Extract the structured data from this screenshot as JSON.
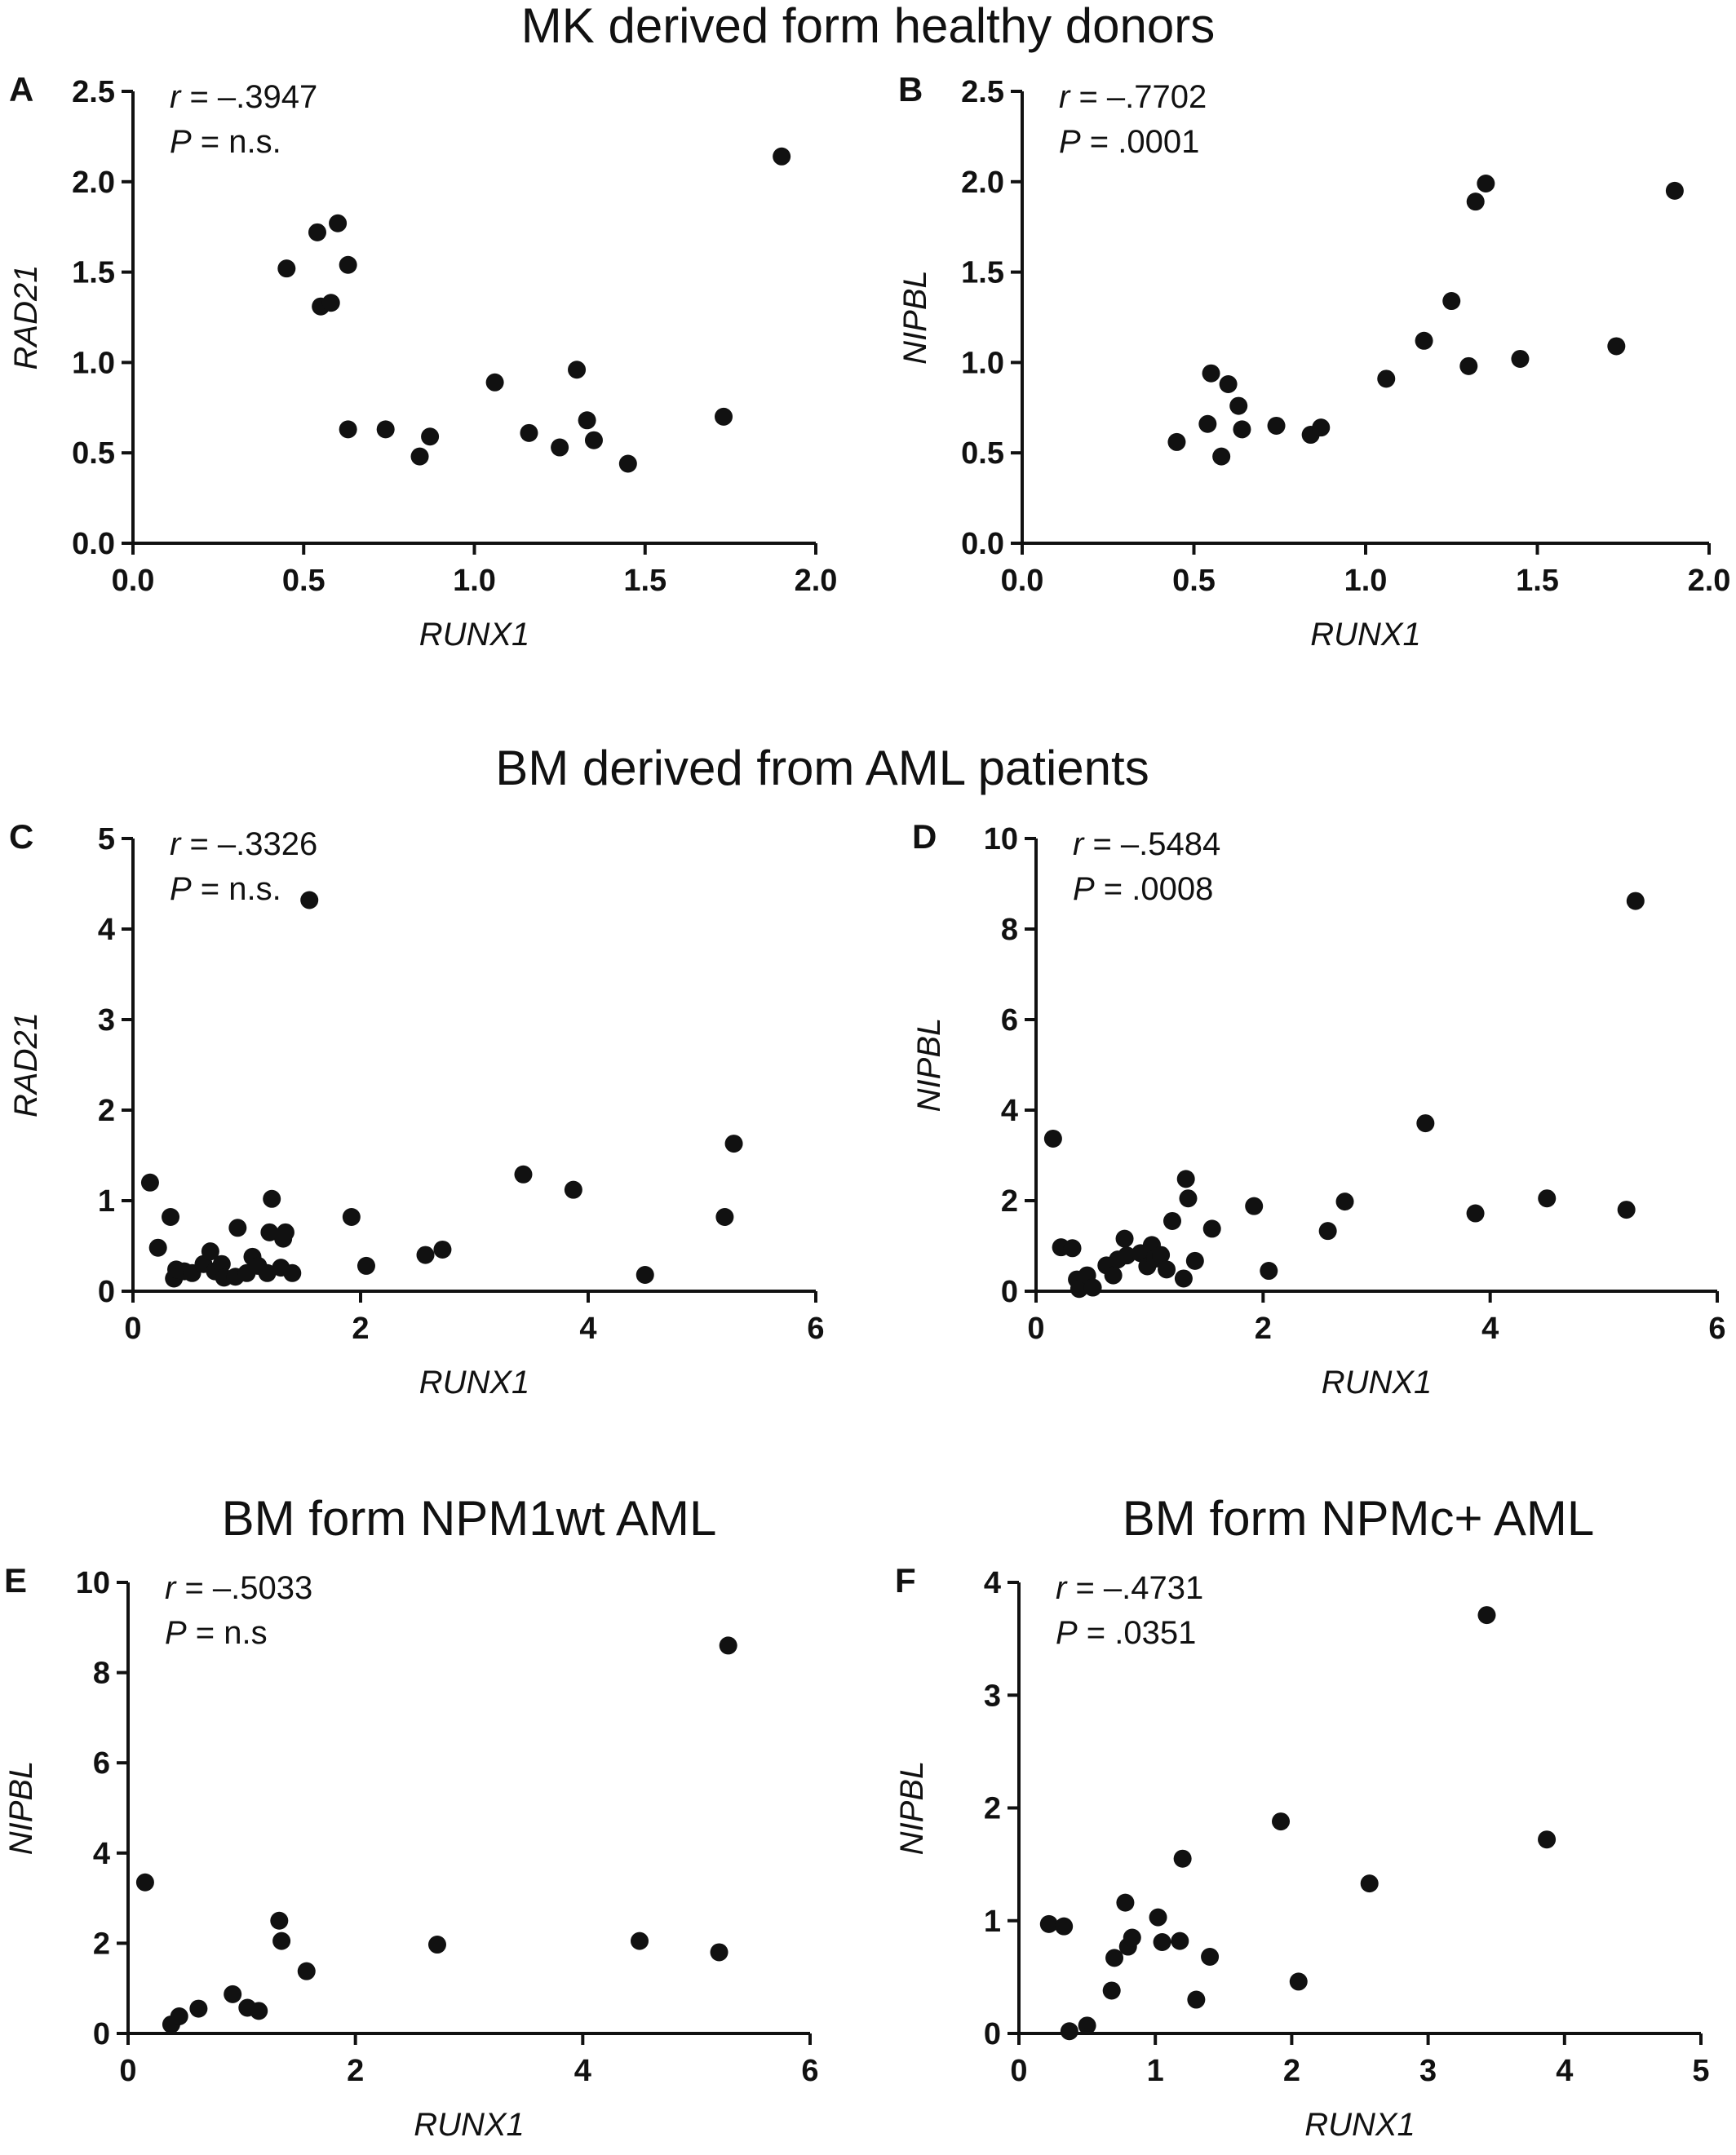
{
  "section_titles": [
    "MK derived form healthy donors",
    "BM derived from AML patients",
    "BM form NPM1wt AML",
    "BM form NPMc+ AML"
  ],
  "chart_data": [
    {
      "panel": "A",
      "type": "scatter",
      "xlabel": "RUNX1",
      "ylabel": "RAD21",
      "xlim": [
        0,
        2.0
      ],
      "ylim": [
        0,
        2.5
      ],
      "xticks": [
        "0.0",
        "0.5",
        "1.0",
        "1.5",
        "2.0"
      ],
      "yticks": [
        "0.0",
        "0.5",
        "1.0",
        "1.5",
        "2.0",
        "2.5"
      ],
      "stats": {
        "r_label": "r",
        "r_value": " = –.3947",
        "p_label": "P",
        "p_value": " = n.s."
      },
      "points": [
        [
          0.45,
          1.52
        ],
        [
          0.54,
          1.72
        ],
        [
          0.55,
          1.31
        ],
        [
          0.58,
          1.33
        ],
        [
          0.6,
          1.77
        ],
        [
          0.63,
          1.54
        ],
        [
          0.63,
          0.63
        ],
        [
          0.74,
          0.63
        ],
        [
          0.84,
          0.48
        ],
        [
          0.87,
          0.59
        ],
        [
          1.06,
          0.89
        ],
        [
          1.16,
          0.61
        ],
        [
          1.25,
          0.53
        ],
        [
          1.3,
          0.96
        ],
        [
          1.33,
          0.68
        ],
        [
          1.35,
          0.57
        ],
        [
          1.45,
          0.44
        ],
        [
          1.73,
          0.7
        ],
        [
          1.9,
          2.14
        ]
      ]
    },
    {
      "panel": "B",
      "type": "scatter",
      "xlabel": "RUNX1",
      "ylabel": "NIPBL",
      "xlim": [
        0,
        2.0
      ],
      "ylim": [
        0,
        2.5
      ],
      "xticks": [
        "0.0",
        "0.5",
        "1.0",
        "1.5",
        "2.0"
      ],
      "yticks": [
        "0.0",
        "0.5",
        "1.0",
        "1.5",
        "2.0",
        "2.5"
      ],
      "stats": {
        "r_label": "r",
        "r_value": " = –.7702",
        "p_label": "P",
        "p_value": " = .0001"
      },
      "points": [
        [
          0.45,
          0.56
        ],
        [
          0.54,
          0.66
        ],
        [
          0.55,
          0.94
        ],
        [
          0.58,
          0.48
        ],
        [
          0.6,
          0.88
        ],
        [
          0.63,
          0.76
        ],
        [
          0.64,
          0.63
        ],
        [
          0.74,
          0.65
        ],
        [
          0.84,
          0.6
        ],
        [
          0.87,
          0.64
        ],
        [
          1.06,
          0.91
        ],
        [
          1.17,
          1.12
        ],
        [
          1.25,
          1.34
        ],
        [
          1.3,
          0.98
        ],
        [
          1.32,
          1.89
        ],
        [
          1.35,
          1.99
        ],
        [
          1.45,
          1.02
        ],
        [
          1.73,
          1.09
        ],
        [
          1.9,
          1.95
        ]
      ]
    },
    {
      "panel": "C",
      "type": "scatter",
      "xlabel": "RUNX1",
      "ylabel": "RAD21",
      "xlim": [
        0,
        6
      ],
      "ylim": [
        0,
        5
      ],
      "xticks": [
        "0",
        "2",
        "4",
        "6"
      ],
      "yticks": [
        "0",
        "1",
        "2",
        "3",
        "4",
        "5"
      ],
      "stats": {
        "r_label": "r",
        "r_value": " = –.3326",
        "p_label": "P",
        "p_value": " = n.s."
      },
      "points": [
        [
          0.15,
          1.2
        ],
        [
          0.22,
          0.48
        ],
        [
          0.33,
          0.82
        ],
        [
          0.36,
          0.14
        ],
        [
          0.38,
          0.24
        ],
        [
          0.45,
          0.22
        ],
        [
          0.52,
          0.2
        ],
        [
          0.62,
          0.3
        ],
        [
          0.68,
          0.44
        ],
        [
          0.72,
          0.22
        ],
        [
          0.78,
          0.3
        ],
        [
          0.8,
          0.15
        ],
        [
          0.9,
          0.16
        ],
        [
          0.92,
          0.7
        ],
        [
          1.0,
          0.2
        ],
        [
          1.05,
          0.38
        ],
        [
          1.1,
          0.28
        ],
        [
          1.18,
          0.2
        ],
        [
          1.2,
          0.65
        ],
        [
          1.22,
          1.02
        ],
        [
          1.3,
          0.26
        ],
        [
          1.32,
          0.58
        ],
        [
          1.34,
          0.65
        ],
        [
          1.4,
          0.2
        ],
        [
          1.55,
          4.32
        ],
        [
          1.92,
          0.82
        ],
        [
          2.05,
          0.28
        ],
        [
          2.57,
          0.4
        ],
        [
          2.72,
          0.46
        ],
        [
          3.43,
          1.29
        ],
        [
          3.87,
          1.12
        ],
        [
          4.5,
          0.18
        ],
        [
          5.2,
          0.82
        ],
        [
          5.28,
          1.63
        ]
      ]
    },
    {
      "panel": "D",
      "type": "scatter",
      "xlabel": "RUNX1",
      "ylabel": "NIPBL",
      "xlim": [
        0,
        6
      ],
      "ylim": [
        0,
        10
      ],
      "xticks": [
        "0",
        "2",
        "4",
        "6"
      ],
      "yticks": [
        "0",
        "2",
        "4",
        "6",
        "8",
        "10"
      ],
      "stats": {
        "r_label": "r",
        "r_value": " = –.5484",
        "p_label": "P",
        "p_value": " =  .0008"
      },
      "points": [
        [
          0.15,
          3.37
        ],
        [
          0.22,
          0.97
        ],
        [
          0.32,
          0.95
        ],
        [
          0.36,
          0.26
        ],
        [
          0.38,
          0.05
        ],
        [
          0.45,
          0.35
        ],
        [
          0.5,
          0.08
        ],
        [
          0.62,
          0.57
        ],
        [
          0.68,
          0.35
        ],
        [
          0.72,
          0.7
        ],
        [
          0.78,
          1.16
        ],
        [
          0.8,
          0.79
        ],
        [
          0.92,
          0.84
        ],
        [
          0.98,
          0.55
        ],
        [
          1.02,
          1.02
        ],
        [
          1.05,
          0.72
        ],
        [
          1.1,
          0.8
        ],
        [
          1.15,
          0.48
        ],
        [
          1.2,
          1.55
        ],
        [
          1.3,
          0.28
        ],
        [
          1.32,
          2.48
        ],
        [
          1.34,
          2.05
        ],
        [
          1.4,
          0.67
        ],
        [
          1.55,
          1.38
        ],
        [
          1.92,
          1.88
        ],
        [
          2.05,
          0.45
        ],
        [
          2.57,
          1.33
        ],
        [
          2.72,
          1.98
        ],
        [
          3.43,
          3.71
        ],
        [
          3.87,
          1.72
        ],
        [
          4.5,
          2.05
        ],
        [
          5.2,
          1.8
        ],
        [
          5.28,
          8.62
        ]
      ]
    },
    {
      "panel": "E",
      "type": "scatter",
      "xlabel": "RUNX1",
      "ylabel": "NIPBL",
      "xlim": [
        0,
        6
      ],
      "ylim": [
        0,
        10
      ],
      "xticks": [
        "0",
        "2",
        "4",
        "6"
      ],
      "yticks": [
        "0",
        "2",
        "4",
        "6",
        "8",
        "10"
      ],
      "stats": {
        "r_label": "r",
        "r_value": " = –.5033",
        "p_label": "P",
        "p_value": " = n.s"
      },
      "points": [
        [
          0.15,
          3.35
        ],
        [
          0.38,
          0.2
        ],
        [
          0.45,
          0.38
        ],
        [
          0.62,
          0.55
        ],
        [
          0.92,
          0.87
        ],
        [
          1.05,
          0.57
        ],
        [
          1.15,
          0.5
        ],
        [
          1.33,
          2.5
        ],
        [
          1.35,
          2.05
        ],
        [
          1.57,
          1.38
        ],
        [
          2.72,
          1.97
        ],
        [
          4.5,
          2.05
        ],
        [
          5.2,
          1.8
        ],
        [
          5.28,
          8.6
        ]
      ]
    },
    {
      "panel": "F",
      "type": "scatter",
      "xlabel": "RUNX1",
      "ylabel": "NIPBL",
      "xlim": [
        0,
        5
      ],
      "ylim": [
        0,
        4
      ],
      "xticks": [
        "0",
        "1",
        "2",
        "3",
        "4",
        "5"
      ],
      "yticks": [
        "0",
        "1",
        "2",
        "3",
        "4"
      ],
      "stats": {
        "r_label": "r",
        "r_value": " = –.4731",
        "p_label": "P",
        "p_value": " = .0351"
      },
      "points": [
        [
          0.22,
          0.97
        ],
        [
          0.33,
          0.95
        ],
        [
          0.37,
          0.02
        ],
        [
          0.5,
          0.07
        ],
        [
          0.68,
          0.38
        ],
        [
          0.7,
          0.67
        ],
        [
          0.78,
          1.16
        ],
        [
          0.8,
          0.77
        ],
        [
          0.83,
          0.85
        ],
        [
          1.02,
          1.03
        ],
        [
          1.05,
          0.81
        ],
        [
          1.18,
          0.82
        ],
        [
          1.2,
          1.55
        ],
        [
          1.3,
          0.3
        ],
        [
          1.4,
          0.68
        ],
        [
          1.92,
          1.88
        ],
        [
          2.05,
          0.46
        ],
        [
          2.57,
          1.33
        ],
        [
          3.43,
          3.71
        ],
        [
          3.87,
          1.72
        ]
      ]
    }
  ]
}
